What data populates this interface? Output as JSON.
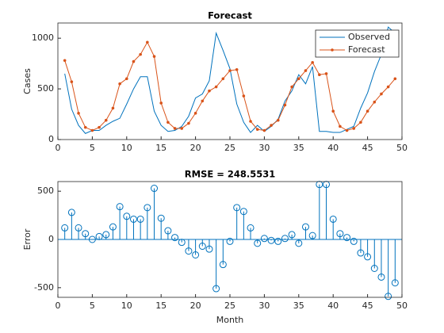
{
  "chart_data": [
    {
      "type": "line",
      "title": "Forecast",
      "ylabel": "Cases",
      "x": [
        1,
        2,
        3,
        4,
        5,
        6,
        7,
        8,
        9,
        10,
        11,
        12,
        13,
        14,
        15,
        16,
        17,
        18,
        19,
        20,
        21,
        22,
        23,
        24,
        25,
        26,
        27,
        28,
        29,
        30,
        31,
        32,
        33,
        34,
        35,
        36,
        37,
        38,
        39,
        40,
        41,
        42,
        43,
        44,
        45,
        46,
        47,
        48,
        49
      ],
      "series": [
        {
          "name": "Observed",
          "color": "#0072BD",
          "marker": "none",
          "values": [
            650,
            300,
            140,
            60,
            90,
            90,
            140,
            180,
            210,
            350,
            500,
            620,
            620,
            280,
            140,
            80,
            90,
            130,
            230,
            410,
            450,
            580,
            1050,
            880,
            700,
            350,
            170,
            70,
            140,
            80,
            130,
            200,
            380,
            480,
            640,
            550,
            720,
            80,
            80,
            70,
            70,
            100,
            130,
            310,
            460,
            670,
            840,
            1110,
            1050
          ]
        },
        {
          "name": "Forecast",
          "color": "#D95319",
          "marker": "dot",
          "values": [
            780,
            570,
            260,
            120,
            90,
            120,
            190,
            310,
            550,
            600,
            770,
            840,
            960,
            820,
            360,
            170,
            110,
            110,
            160,
            260,
            380,
            480,
            520,
            600,
            680,
            690,
            430,
            180,
            100,
            90,
            140,
            190,
            340,
            520,
            600,
            680,
            760,
            640,
            650,
            280,
            130,
            90,
            110,
            170,
            280,
            370,
            450,
            520,
            600
          ]
        }
      ],
      "xlim": [
        0,
        50
      ],
      "xticks": [
        0,
        5,
        10,
        15,
        20,
        25,
        30,
        35,
        40,
        45,
        50
      ],
      "ylim": [
        0,
        1150
      ],
      "yticks": [
        0,
        500,
        1000
      ],
      "legend": "northeast"
    },
    {
      "type": "stem",
      "title": "RMSE = 248.5531",
      "xlabel": "Month",
      "ylabel": "Error",
      "color": "#0072BD",
      "x": [
        1,
        2,
        3,
        4,
        5,
        6,
        7,
        8,
        9,
        10,
        11,
        12,
        13,
        14,
        15,
        16,
        17,
        18,
        19,
        20,
        21,
        22,
        23,
        24,
        25,
        26,
        27,
        28,
        29,
        30,
        31,
        32,
        33,
        34,
        35,
        36,
        37,
        38,
        39,
        40,
        41,
        42,
        43,
        44,
        45,
        46,
        47,
        48,
        49
      ],
      "values": [
        120,
        280,
        120,
        60,
        0,
        30,
        50,
        130,
        340,
        240,
        210,
        210,
        330,
        530,
        220,
        90,
        20,
        -30,
        -120,
        -160,
        -70,
        -100,
        -510,
        -260,
        -20,
        330,
        290,
        120,
        -40,
        10,
        -10,
        -20,
        10,
        50,
        -40,
        130,
        40,
        570,
        570,
        210,
        60,
        20,
        -20,
        -140,
        -180,
        -300,
        -390,
        -590,
        -450
      ],
      "xlim": [
        0,
        50
      ],
      "xticks": [
        0,
        5,
        10,
        15,
        20,
        25,
        30,
        35,
        40,
        45,
        50
      ],
      "ylim": [
        -600,
        600
      ],
      "yticks": [
        -500,
        0,
        500
      ]
    }
  ]
}
